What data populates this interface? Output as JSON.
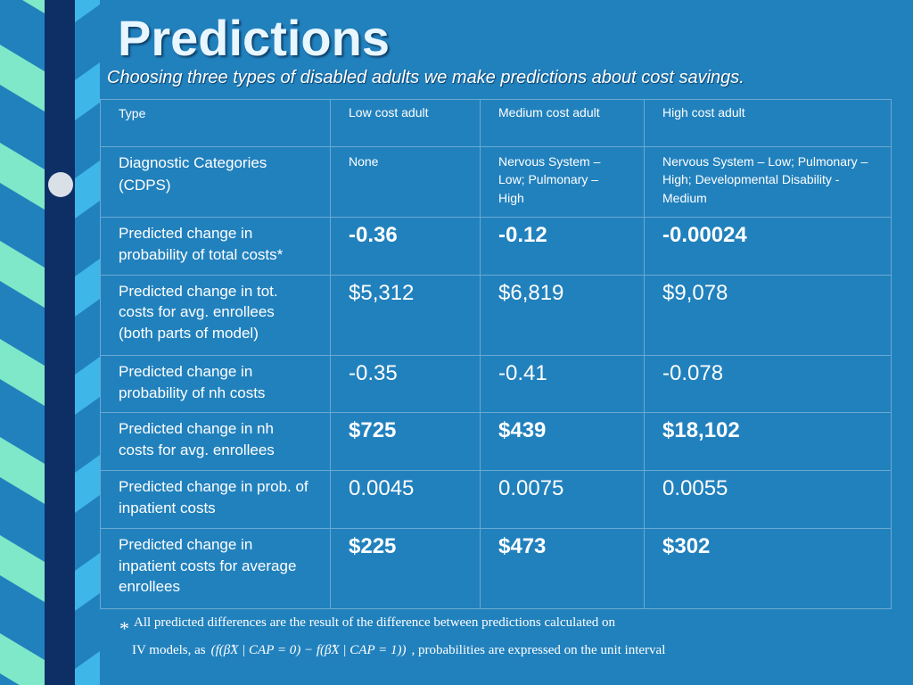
{
  "title": "Predictions",
  "subtitle": "Choosing three types of disabled adults we make predictions about cost savings.",
  "table": {
    "header": [
      "Type",
      "Low cost adult",
      "Medium cost adult",
      "High cost adult"
    ],
    "rows": [
      [
        "Diagnostic Categories (CDPS)",
        "None",
        "Nervous System – Low; Pulmonary – High",
        "Nervous System – Low; Pulmonary –High; Developmental Disability - Medium"
      ],
      [
        "Predicted change in probability of total costs*",
        "-0.36",
        "-0.12",
        "-0.00024"
      ],
      [
        "Predicted change in tot. costs for avg. enrollees (both parts of model)",
        "$5,312",
        "$6,819",
        "$9,078"
      ],
      [
        "Predicted change in probability of nh costs",
        "-0.35",
        "-0.41",
        "-0.078"
      ],
      [
        "Predicted change in nh costs for avg. enrollees",
        "$725",
        "$439",
        "$18,102"
      ],
      [
        "Predicted change in prob. of inpatient costs",
        "0.0045",
        "0.0075",
        "0.0055"
      ],
      [
        "Predicted change in inpatient costs for average enrollees",
        "$225",
        "$473",
        "$302"
      ]
    ]
  },
  "footnote": {
    "marker": "*",
    "line1": "All predicted differences are the result of the difference between predictions calculated on",
    "line2_prefix": "IV models, as",
    "formula": "(f(β̂X | CAP = 0) − f(β̂X | CAP = 1))",
    "line2_suffix": ", probabilities are expressed on the unit interval"
  }
}
